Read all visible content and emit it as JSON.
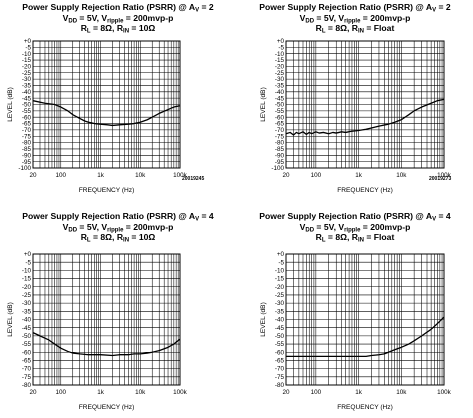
{
  "chart_data": [
    {
      "type": "line",
      "title_line1": "Power Supply Rejection Ratio (PSRR) @ A",
      "title_line1_sub": "V",
      "title_line1_tail": " = 2",
      "title_line2": {
        "a": "V",
        "a_sub": "DD",
        "b": " = 5V, V",
        "b_sub": "ripple",
        "c": " = 200mvp-p"
      },
      "title_line3": {
        "a": "R",
        "a_sub": "L",
        "b": " = 8Ω, R",
        "b_sub": "IN",
        "c": " = 10Ω"
      },
      "xlabel": "FREQUENCY (Hz)",
      "ylabel": "LEVEL (dB)",
      "x_scale": "log",
      "xlim": [
        20,
        100000
      ],
      "ylim": [
        -100,
        0
      ],
      "y_step": 5,
      "x_ticks": [
        "20",
        "100",
        "1k",
        "10k",
        "100k"
      ],
      "y_ticks": [
        "+0",
        "-5",
        "-10",
        "-15",
        "-20",
        "-25",
        "-30",
        "-35",
        "-40",
        "-45",
        "-50",
        "-55",
        "-60",
        "-65",
        "-70",
        "-75",
        "-80",
        "-85",
        "-90",
        "-95",
        "-100"
      ],
      "grid": true,
      "figure_id": "20019245",
      "series": [
        {
          "x": [
            20,
            40,
            70,
            100,
            150,
            200,
            300,
            400,
            500,
            700,
            1000,
            1500,
            2000,
            3000,
            5000,
            7000,
            10000,
            15000,
            20000,
            30000,
            50000,
            70000,
            100000
          ],
          "y": [
            -47,
            -49,
            -50,
            -52,
            -55,
            -58,
            -61,
            -63,
            -64,
            -65,
            -65.5,
            -66,
            -66.5,
            -66,
            -65.5,
            -65,
            -64,
            -62,
            -60,
            -57,
            -54,
            -52,
            -51
          ]
        }
      ]
    },
    {
      "type": "line",
      "title_line1": "Power Supply Rejection Ratio (PSRR) @ A",
      "title_line1_sub": "V",
      "title_line1_tail": " = 2",
      "title_line2": {
        "a": "V",
        "a_sub": "DD",
        "b": " = 5V, V",
        "b_sub": "ripple",
        "c": " = 200mvp-p"
      },
      "title_line3": {
        "a": "R",
        "a_sub": "L",
        "b": " = 8Ω, R",
        "b_sub": "IN",
        "c": " = Float"
      },
      "xlabel": "FREQUENCY (Hz)",
      "ylabel": "LEVEL (dB)",
      "x_scale": "log",
      "xlim": [
        20,
        100000
      ],
      "ylim": [
        -100,
        0
      ],
      "y_step": 5,
      "x_ticks": [
        "20",
        "100",
        "1k",
        "10k",
        "100k"
      ],
      "y_ticks": [
        "+0",
        "-5",
        "-10",
        "-15",
        "-20",
        "-25",
        "-30",
        "-35",
        "-40",
        "-45",
        "-50",
        "-55",
        "-60",
        "-65",
        "-70",
        "-75",
        "-80",
        "-85",
        "-90",
        "-95",
        "-100"
      ],
      "grid": true,
      "figure_id": "20019273",
      "series": [
        {
          "x": [
            20,
            25,
            30,
            35,
            40,
            50,
            60,
            70,
            80,
            100,
            120,
            150,
            200,
            250,
            300,
            400,
            500,
            700,
            1000,
            1500,
            2000,
            3000,
            5000,
            7000,
            10000,
            15000,
            20000,
            30000,
            50000,
            70000,
            100000
          ],
          "y": [
            -73,
            -72,
            -74,
            -72,
            -73,
            -71.5,
            -73.5,
            -72,
            -73,
            -71.5,
            -72.5,
            -72,
            -73,
            -72,
            -72.5,
            -71.5,
            -72,
            -71,
            -70.5,
            -69.5,
            -68.5,
            -67,
            -65.5,
            -64,
            -62,
            -58,
            -55,
            -52,
            -49,
            -47,
            -46
          ]
        }
      ]
    },
    {
      "type": "line",
      "title_line1": "Power Supply Rejection Ratio (PSRR) @ A",
      "title_line1_sub": "V",
      "title_line1_tail": " = 4",
      "title_line2": {
        "a": "V",
        "a_sub": "DD",
        "b": " = 5V, V",
        "b_sub": "ripple",
        "c": " = 200mvp-p"
      },
      "title_line3": {
        "a": "R",
        "a_sub": "L",
        "b": " = 8Ω, R",
        "b_sub": "IN",
        "c": " = 10Ω"
      },
      "xlabel": "FREQUENCY (Hz)",
      "ylabel": "LEVEL (dB)",
      "x_scale": "log",
      "xlim": [
        20,
        100000
      ],
      "ylim": [
        -80,
        0
      ],
      "y_step": 5,
      "x_ticks": [
        "20",
        "100",
        "1k",
        "10k",
        "100k"
      ],
      "y_ticks": [
        "+0",
        "-5",
        "-10",
        "-15",
        "-20",
        "-25",
        "-30",
        "-35",
        "-40",
        "-45",
        "-50",
        "-55",
        "-60",
        "-65",
        "-70",
        "-75",
        "-80"
      ],
      "grid": true,
      "figure_id": "",
      "series": [
        {
          "x": [
            20,
            30,
            50,
            70,
            100,
            150,
            200,
            300,
            500,
            700,
            1000,
            2000,
            3000,
            5000,
            7000,
            10000,
            15000,
            20000,
            30000,
            50000,
            70000,
            100000
          ],
          "y": [
            -48,
            -50,
            -52.5,
            -55,
            -57.5,
            -59.5,
            -60.5,
            -61,
            -61.5,
            -61.5,
            -61.5,
            -62,
            -61.5,
            -61.5,
            -61,
            -61,
            -60.5,
            -60,
            -59,
            -57,
            -55,
            -52
          ]
        }
      ]
    },
    {
      "type": "line",
      "title_line1": "Power Supply Rejection Ratio (PSRR) @ A",
      "title_line1_sub": "V",
      "title_line1_tail": " = 4",
      "title_line2": {
        "a": "V",
        "a_sub": "DD",
        "b": " = 5V, V",
        "b_sub": "ripple",
        "c": " = 200mvp-p"
      },
      "title_line3": {
        "a": "R",
        "a_sub": "L",
        "b": " = 8Ω, R",
        "b_sub": "IN",
        "c": " = Float"
      },
      "xlabel": "FREQUENCY (Hz)",
      "ylabel": "LEVEL (dB)",
      "x_scale": "log",
      "xlim": [
        20,
        100000
      ],
      "ylim": [
        -80,
        0
      ],
      "y_step": 5,
      "x_ticks": [
        "20",
        "100",
        "1k",
        "10k",
        "100k"
      ],
      "y_ticks": [
        "+0",
        "-5",
        "-10",
        "-15",
        "-20",
        "-25",
        "-30",
        "-35",
        "-40",
        "-45",
        "-50",
        "-55",
        "-60",
        "-65",
        "-70",
        "-75",
        "-80"
      ],
      "grid": true,
      "figure_id": "",
      "series": [
        {
          "x": [
            20,
            30,
            50,
            70,
            100,
            200,
            300,
            500,
            700,
            1000,
            1500,
            2000,
            3000,
            4000,
            5000,
            7000,
            10000,
            15000,
            20000,
            30000,
            50000,
            70000,
            100000
          ],
          "y": [
            -62.5,
            -62.5,
            -62.5,
            -62.5,
            -62.5,
            -62.5,
            -62.5,
            -62.5,
            -62.5,
            -62.5,
            -62.5,
            -62,
            -61.5,
            -61,
            -60,
            -58.5,
            -57,
            -55,
            -53,
            -50,
            -46,
            -42.5,
            -38.5
          ]
        }
      ]
    }
  ]
}
